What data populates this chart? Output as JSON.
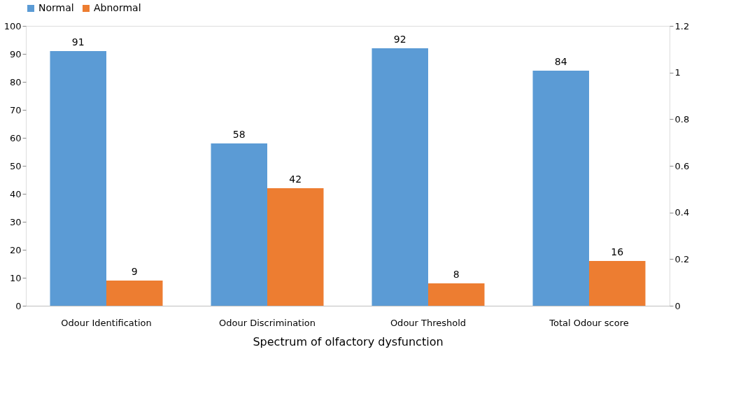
{
  "chart_data": {
    "type": "bar",
    "xlabel": "Spectrum of olfactory dysfunction",
    "categories": [
      "Odour Identification",
      "Odour Discrimination",
      "Odour Threshold",
      "Total Odour score"
    ],
    "series": [
      {
        "name": "Normal",
        "color": "#5b9bd5",
        "values": [
          91,
          58,
          92,
          84
        ]
      },
      {
        "name": "Abnormal",
        "color": "#ed7d31",
        "values": [
          9,
          42,
          8,
          16
        ]
      }
    ],
    "ylim": [
      0,
      100
    ],
    "yticks": [
      0,
      10,
      20,
      30,
      40,
      50,
      60,
      70,
      80,
      90,
      100
    ],
    "y2lim": [
      0,
      1.2
    ],
    "y2ticks": [
      0,
      0.2,
      0.4,
      0.6,
      0.8,
      1,
      1.2
    ],
    "data_labels": true,
    "legend": "top",
    "grid": false
  }
}
